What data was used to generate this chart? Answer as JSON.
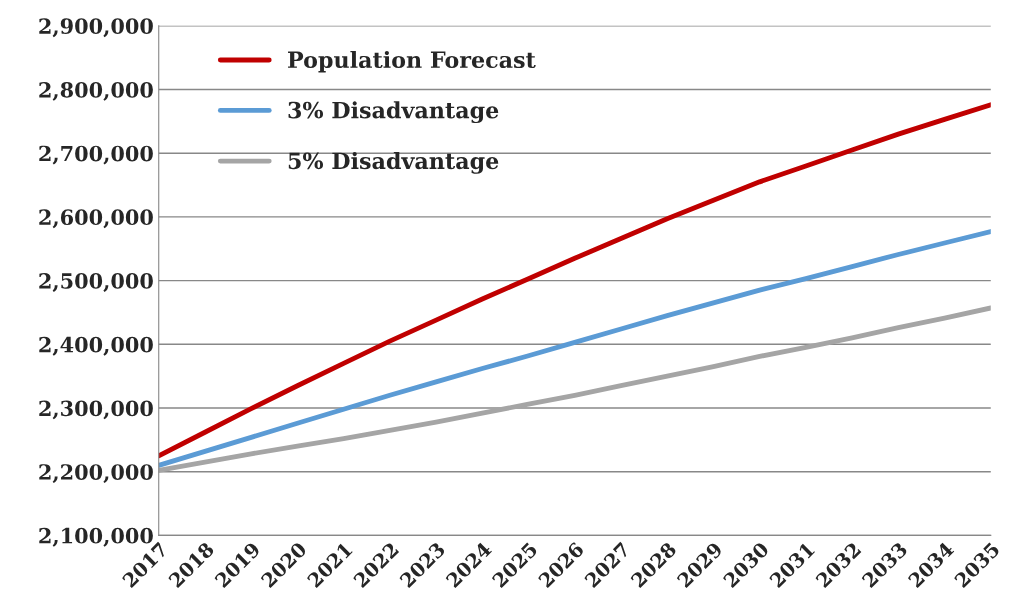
{
  "chart_data": {
    "type": "line",
    "categories": [
      "2017",
      "2018",
      "2019",
      "2020",
      "2021",
      "2022",
      "2023",
      "2024",
      "2025",
      "2026",
      "2027",
      "2028",
      "2029",
      "2030",
      "2031",
      "2032",
      "2033",
      "2034",
      "2035"
    ],
    "series": [
      {
        "name": "Population Forecast",
        "color": "#c00000",
        "values": [
          2225000,
          2262000,
          2299000,
          2335000,
          2370000,
          2405000,
          2438000,
          2471000,
          2503000,
          2535000,
          2566000,
          2597000,
          2626000,
          2655000,
          2680000,
          2705000,
          2730000,
          2753000,
          2776000
        ]
      },
      {
        "name": "3% Disadvantage",
        "color": "#5b9bd5",
        "values": [
          2210000,
          2232000,
          2254000,
          2276000,
          2298000,
          2320000,
          2341000,
          2362000,
          2382000,
          2403000,
          2424000,
          2445000,
          2465000,
          2485000,
          2503000,
          2522000,
          2541000,
          2559000,
          2577000
        ]
      },
      {
        "name": "5% Disadvantage",
        "color": "#a5a5a5",
        "values": [
          2202000,
          2215000,
          2228000,
          2240000,
          2252000,
          2265000,
          2278000,
          2292000,
          2306000,
          2320000,
          2335000,
          2350000,
          2365000,
          2381000,
          2395000,
          2410000,
          2426000,
          2441000,
          2457000
        ]
      }
    ],
    "ylim": [
      2100000,
      2900000
    ],
    "yticks": [
      {
        "value": 2100000,
        "label": "2,100,000"
      },
      {
        "value": 2200000,
        "label": "2,200,000"
      },
      {
        "value": 2300000,
        "label": "2,300,000"
      },
      {
        "value": 2400000,
        "label": "2,400,000"
      },
      {
        "value": 2500000,
        "label": "2,500,000"
      },
      {
        "value": 2600000,
        "label": "2,600,000"
      },
      {
        "value": 2700000,
        "label": "2,700,000"
      },
      {
        "value": 2800000,
        "label": "2,800,000"
      },
      {
        "value": 2900000,
        "label": "2,900,000"
      }
    ],
    "grid": "y",
    "legend": "top left",
    "marker": "none",
    "line_style": "solid"
  }
}
